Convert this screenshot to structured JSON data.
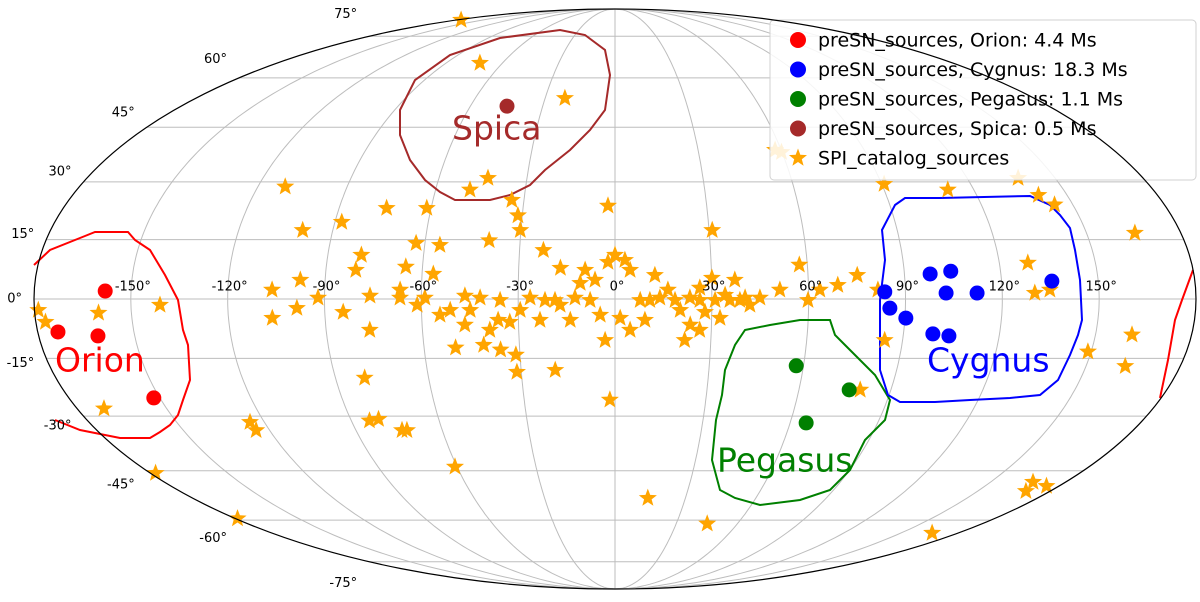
{
  "chart_data": {
    "type": "scatter",
    "projection": "mollweide",
    "grid": true,
    "legend": "upper right",
    "xlim": [
      -180,
      180
    ],
    "ylim": [
      -90,
      90
    ],
    "xticks": [
      {
        "value": -150,
        "label": "-150°"
      },
      {
        "value": -120,
        "label": "-120°"
      },
      {
        "value": -90,
        "label": "-90°"
      },
      {
        "value": -60,
        "label": "-60°"
      },
      {
        "value": -30,
        "label": "-30°"
      },
      {
        "value": 0,
        "label": "0°"
      },
      {
        "value": 30,
        "label": "30°"
      },
      {
        "value": 60,
        "label": "60°"
      },
      {
        "value": 90,
        "label": "90°"
      },
      {
        "value": 120,
        "label": "120°"
      },
      {
        "value": 150,
        "label": "150°"
      }
    ],
    "yticks": [
      {
        "value": -75,
        "label": "-75°"
      },
      {
        "value": -60,
        "label": "-60°"
      },
      {
        "value": -45,
        "label": "-45°"
      },
      {
        "value": -30,
        "label": "-30°"
      },
      {
        "value": -15,
        "label": "-15°"
      },
      {
        "value": 0,
        "label": "0°"
      },
      {
        "value": 15,
        "label": "15°"
      },
      {
        "value": 30,
        "label": "30°"
      },
      {
        "value": 45,
        "label": "45°"
      },
      {
        "value": 60,
        "label": "60°"
      },
      {
        "value": 75,
        "label": "75°"
      }
    ],
    "annotations": [
      {
        "text": "Orion",
        "color": "#ff0000"
      },
      {
        "text": "Spica",
        "color": "#a52a2a"
      },
      {
        "text": "Pegasus",
        "color": "#008000"
      },
      {
        "text": "Cygnus",
        "color": "#0000ff"
      }
    ],
    "series": [
      {
        "name": "preSN_sources, Orion: 4.4 Ms",
        "color": "#ff0000",
        "marker": "circle",
        "x": [
          -158,
          -173.7,
          -161.5,
          -152
        ],
        "values": [
          2,
          -8.3,
          -9.3,
          -25.2
        ]
      },
      {
        "name": "preSN_sources, Cygnus: 18.3 Ms",
        "color": "#0000ff",
        "marker": "circle",
        "x": [
          83.6,
          98.0,
          104.5,
          102.6,
          112.2,
          85.2,
          90.3,
          99.2,
          104.3,
          135.6
        ],
        "values": [
          1.8,
          6.3,
          7.0,
          1.5,
          1.5,
          -2.3,
          -4.8,
          -8.8,
          -9.3,
          4.5
        ]
      },
      {
        "name": "preSN_sources, Pegasus: 1.1 Ms",
        "color": "#008000",
        "marker": "circle",
        "x": [
          57.7,
          76.4,
          65.5
        ],
        "values": [
          -16.9,
          -23.1,
          -31.8
        ]
      },
      {
        "name": "preSN_sources, Spica: 0.5 Ms",
        "color": "#a52a2a",
        "marker": "circle",
        "x": [
          -44.8
        ],
        "values": [
          51.2
        ]
      },
      {
        "name": "SPI_catalog_sources",
        "color": "#ffa500",
        "marker": "star",
        "x": [
          -175,
          -72,
          -21.5,
          -48.5,
          -43.3,
          -110.8,
          -87.8,
          -99.6,
          -74.5,
          -61.4,
          -34,
          -31.4,
          -2.3,
          -55.2,
          -62.8,
          -39.8,
          -22.5,
          -30.2,
          -79.5,
          -106.3,
          -97.7,
          -106.4,
          -98.6,
          -92,
          -84.3,
          -75.9,
          -80.7,
          -65.2,
          -56.5,
          -76.4,
          -66.6,
          -54.3,
          -46.7,
          -39.0,
          -32.7,
          -41.2,
          -31.3,
          -50.1,
          -31.4,
          -19.1,
          -80.6,
          -124.9,
          -124.7,
          -83.8,
          -80.5,
          -74,
          -72.3,
          -60.8,
          -178,
          -179,
          -1.7,
          14.0,
          45.2,
          166.3,
          167,
          170,
          175,
          165.4,
          161.4,
          162.5,
          149,
          134.8,
          140.5,
          144,
          137.4,
          111.3,
          90.8,
          84.4,
          81.5,
          75.3,
          69.1,
          63.5,
          59.8,
          51.1,
          57.5,
          44.9,
          38.7,
          37.2,
          30.1,
          31.0,
          31.0,
          32.6,
          27.9,
          23.4,
          21.8,
          26.4,
          20.2,
          13.9,
          9.3,
          4.7,
          7.8,
          1.6,
          -3.1,
          -4.6,
          -6.2,
          -2.2,
          3.1,
          4.7,
          -10.8,
          -12.4,
          -17.0,
          -21.7,
          -26.3,
          -29.4,
          -35.6,
          -41.8,
          -44.9,
          -46.5,
          -51.1,
          -58.9,
          -61.3,
          -66.6,
          -17.0,
          -9.3,
          0,
          12.4,
          16.4,
          23.2,
          26.3,
          34.1,
          40.3,
          41.8,
          -13.9,
          -23.3,
          -36.3,
          -36.0,
          -7.7,
          -18.6,
          10.8,
          18.6,
          26.3,
          35.6,
          80.0,
          130.1,
          128.9,
          -141,
          -171,
          -160.2,
          -178.8,
          -177,
          57.8,
          59.8
        ],
        "values": [
          82.4,
          65.0,
          53.6,
          27.9,
          31.0,
          28.7,
          19.5,
          17.4,
          23.1,
          23.1,
          25.2,
          21.2,
          23.7,
          13.6,
          14.1,
          14.8,
          12.3,
          17.4,
          11.1,
          2.3,
          4.8,
          -4.8,
          -2.3,
          0.3,
          -3.3,
          0.8,
          7.3,
          8.1,
          6.3,
          -7.8,
          2.3,
          -4.0,
          -6.5,
          -7.8,
          -5.8,
          -11.6,
          -14.1,
          -12.3,
          -18.5,
          -18.0,
          -20.0,
          -31.6,
          -33.8,
          -31.2,
          -30.8,
          -33.8,
          -33.8,
          -43.9,
          -45.7,
          -59.5,
          -25.7,
          -53.1,
          -61.2,
          -64.3,
          -48.3,
          -51,
          -49.5,
          16.7,
          -9.0,
          -17.0,
          -13.3,
          2.3,
          26.5,
          24.0,
          31.0,
          27.9,
          29.4,
          -10.4,
          2.3,
          6.0,
          3.5,
          2.3,
          -0.3,
          2.3,
          8.6,
          0.3,
          -0.3,
          4.8,
          5.3,
          -0.3,
          17.4,
          -4.8,
          -3.3,
          -6.5,
          -10.4,
          -7.8,
          -2.8,
          0.3,
          -5.3,
          -7.8,
          -0.3,
          -4.8,
          -10.4,
          -4.0,
          4.8,
          9.3,
          9.8,
          7.3,
          4.0,
          0.3,
          -1.5,
          -0.3,
          0.3,
          -2.8,
          -0.3,
          0.3,
          -2.8,
          0.8,
          -2.8,
          0.3,
          -1.5,
          0.3,
          7.8,
          7.3,
          11.1,
          6.0,
          2.3,
          0.3,
          2.8,
          1.0,
          0.3,
          -1.5,
          -5.3,
          -5.3,
          -5.3,
          -12.8,
          -0.3,
          -0.3,
          -0.3,
          -0.3,
          -0.3,
          -0.3,
          -23.1,
          1.5,
          9.1,
          -1.5,
          -28,
          -3.5,
          -2.8,
          -5.8,
          38.6,
          38.0
        ]
      }
    ]
  }
}
